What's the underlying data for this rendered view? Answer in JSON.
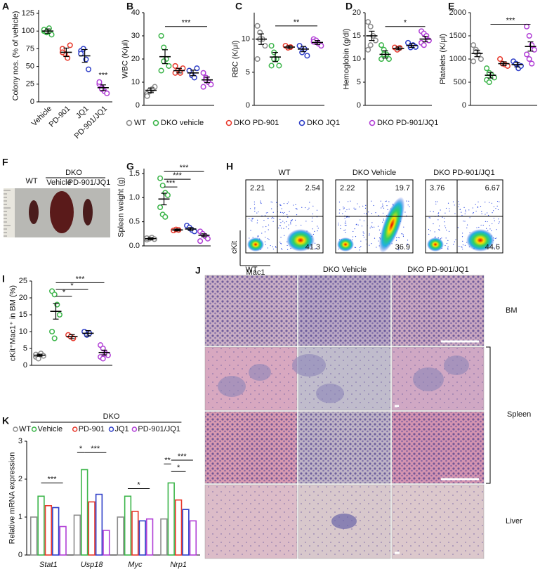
{
  "chart_data": [
    {
      "label": "A",
      "type": "dot",
      "y_label": "Colony nos. (% of vehicle)",
      "categories": [
        "Vehicle",
        "PD-901",
        "JQ1",
        "PD-901/JQ1"
      ],
      "groups": [
        {
          "color": "#3cb54a",
          "points": [
            100,
            98,
            104,
            95,
            102,
            99
          ],
          "mean": 100,
          "sem": 3
        },
        {
          "color": "#e8392c",
          "points": [
            75,
            68,
            62,
            80,
            70
          ],
          "mean": 70,
          "sem": 6
        },
        {
          "color": "#2f3fc8",
          "points": [
            72,
            75,
            60,
            46,
            68
          ],
          "mean": 65,
          "sem": 9
        },
        {
          "color": "#b13fd6",
          "points": [
            25,
            20,
            15,
            12,
            28,
            18
          ],
          "mean": 20,
          "sem": 4
        }
      ],
      "ylim": [
        0,
        130
      ],
      "yticks": [
        0,
        25,
        50,
        75,
        100,
        125
      ],
      "annotations": [
        {
          "text": "***",
          "from": 3,
          "to": 3,
          "y": 32
        }
      ]
    },
    {
      "label": "B",
      "type": "dot",
      "y_label": "WBC (K/μl)",
      "categories": [
        null,
        null,
        null,
        null,
        null
      ],
      "groups": [
        {
          "color": "#8c8c8c",
          "points": [
            5,
            6,
            7,
            8,
            4,
            6.5,
            7
          ],
          "mean": 6.5,
          "sem": 1
        },
        {
          "color": "#3cb54a",
          "points": [
            30,
            25,
            20,
            17,
            15,
            19
          ],
          "mean": 21,
          "sem": 3
        },
        {
          "color": "#e8392c",
          "points": [
            17,
            15,
            14,
            16,
            14
          ],
          "mean": 15,
          "sem": 1
        },
        {
          "color": "#2f3fc8",
          "points": [
            15,
            13,
            12,
            16
          ],
          "mean": 14,
          "sem": 1.2
        },
        {
          "color": "#b13fd6",
          "points": [
            14,
            12,
            10,
            9,
            8,
            11
          ],
          "mean": 11,
          "sem": 1.2
        }
      ],
      "ylim": [
        0,
        40
      ],
      "yticks": [
        0,
        10,
        20,
        30,
        40
      ],
      "annotations": [
        {
          "text": "***",
          "from": 1,
          "to": 4,
          "y": 34
        }
      ]
    },
    {
      "label": "C",
      "type": "dot",
      "y_label": "RBC (K/μl)",
      "categories": [
        null,
        null,
        null,
        null,
        null
      ],
      "groups": [
        {
          "color": "#8c8c8c",
          "points": [
            12,
            11,
            10,
            9,
            7,
            10
          ],
          "mean": 10,
          "sem": 0.8
        },
        {
          "color": "#3cb54a",
          "points": [
            9,
            8,
            7,
            6,
            6,
            7
          ],
          "mean": 7.3,
          "sem": 0.7
        },
        {
          "color": "#e8392c",
          "points": [
            9,
            8.7,
            8.8
          ],
          "mean": 8.8,
          "sem": 0.2
        },
        {
          "color": "#2f3fc8",
          "points": [
            9,
            8,
            8.5,
            7.5
          ],
          "mean": 8.5,
          "sem": 0.4
        },
        {
          "color": "#b13fd6",
          "points": [
            10,
            9.8,
            9.3,
            9,
            9.6
          ],
          "mean": 9.5,
          "sem": 0.3
        }
      ],
      "ylim": [
        0,
        14
      ],
      "yticks": [
        0,
        5,
        10
      ],
      "annotations": [
        {
          "text": "**",
          "from": 1,
          "to": 4,
          "y": 12
        }
      ]
    },
    {
      "label": "D",
      "type": "dot",
      "y_label": "Hemoglobin (g/dl)",
      "categories": [
        null,
        null,
        null,
        null,
        null
      ],
      "groups": [
        {
          "color": "#8c8c8c",
          "points": [
            18,
            17,
            15,
            14,
            12,
            13
          ],
          "mean": 15,
          "sem": 1
        },
        {
          "color": "#3cb54a",
          "points": [
            13,
            12,
            11,
            10,
            10,
            11
          ],
          "mean": 11,
          "sem": 0.8
        },
        {
          "color": "#e8392c",
          "points": [
            12.5,
            12,
            12.4
          ],
          "mean": 12.3,
          "sem": 0.3
        },
        {
          "color": "#2f3fc8",
          "points": [
            13.5,
            12.5,
            13,
            12.6
          ],
          "mean": 12.9,
          "sem": 0.4
        },
        {
          "color": "#b13fd6",
          "points": [
            16,
            15.5,
            15,
            14,
            13.5,
            13
          ],
          "mean": 14.3,
          "sem": 0.6
        }
      ],
      "ylim": [
        0,
        20
      ],
      "yticks": [
        0,
        5,
        10,
        15,
        20
      ],
      "annotations": [
        {
          "text": "*",
          "from": 1,
          "to": 4,
          "y": 17
        }
      ]
    },
    {
      "label": "E",
      "type": "dot",
      "y_label": "Platelets (K/μl)",
      "categories": [
        null,
        null,
        null,
        null,
        null
      ],
      "groups": [
        {
          "color": "#8c8c8c",
          "points": [
            1300,
            1200,
            1100,
            1000,
            950,
            1150
          ],
          "mean": 1120,
          "sem": 70
        },
        {
          "color": "#3cb54a",
          "points": [
            800,
            700,
            650,
            600,
            550,
            500
          ],
          "mean": 650,
          "sem": 60
        },
        {
          "color": "#e8392c",
          "points": [
            1000,
            900,
            880,
            850
          ],
          "mean": 900,
          "sem": 40
        },
        {
          "color": "#2f3fc8",
          "points": [
            950,
            900,
            800,
            850
          ],
          "mean": 880,
          "sem": 50
        },
        {
          "color": "#b13fd6",
          "points": [
            1700,
            1500,
            1300,
            1200,
            1100,
            1000,
            900
          ],
          "mean": 1270,
          "sem": 100
        }
      ],
      "ylim": [
        0,
        2000
      ],
      "yticks": [
        0,
        500,
        1000,
        1500,
        2000
      ],
      "annotations": [
        {
          "text": "***",
          "from": 1,
          "to": 4,
          "y": 1750
        }
      ]
    },
    {
      "label": "G",
      "type": "dot",
      "y_label": "Spleen weight (g)",
      "categories": [
        null,
        null,
        null,
        null,
        null
      ],
      "groups": [
        {
          "color": "#8c8c8c",
          "points": [
            0.13,
            0.15,
            0.17,
            0.14,
            0.16
          ],
          "mean": 0.15,
          "sem": 0.02
        },
        {
          "color": "#3cb54a",
          "points": [
            1.4,
            1.25,
            1.1,
            1.05,
            0.8,
            0.65,
            0.6
          ],
          "mean": 0.97,
          "sem": 0.12
        },
        {
          "color": "#e8392c",
          "points": [
            0.32,
            0.34,
            0.33
          ],
          "mean": 0.33,
          "sem": 0.02
        },
        {
          "color": "#2f3fc8",
          "points": [
            0.42,
            0.38,
            0.33,
            0.3
          ],
          "mean": 0.35,
          "sem": 0.03
        },
        {
          "color": "#b13fd6",
          "points": [
            0.3,
            0.25,
            0.2,
            0.15,
            0.1
          ],
          "mean": 0.22,
          "sem": 0.03
        }
      ],
      "ylim": [
        0,
        1.6
      ],
      "yticks": [
        {
          "value": 0,
          "label": "0.0"
        },
        0.5,
        {
          "value": 1,
          "label": "1.0"
        },
        1.5
      ],
      "annotations": [
        {
          "text": "***",
          "from": 1,
          "to": 2,
          "y": 1.22
        },
        {
          "text": "***",
          "from": 1,
          "to": 3,
          "y": 1.38
        },
        {
          "text": "***",
          "from": 1,
          "to": 4,
          "y": 1.54
        }
      ]
    },
    {
      "label": "I",
      "type": "dot",
      "y_label": "cKit⁺Mac1⁺ in BM (%)",
      "categories": [
        null,
        null,
        null,
        null,
        null
      ],
      "groups": [
        {
          "color": "#8c8c8c",
          "points": [
            2.5,
            3,
            3.5,
            2.8,
            3.2,
            2
          ],
          "mean": 3,
          "sem": 0.3
        },
        {
          "color": "#3cb54a",
          "points": [
            22,
            21,
            18,
            15,
            10,
            8
          ],
          "mean": 16,
          "sem": 2.3
        },
        {
          "color": "#e8392c",
          "points": [
            9,
            8.5,
            8
          ],
          "mean": 8.5,
          "sem": 0.6
        },
        {
          "color": "#2f3fc8",
          "points": [
            10,
            9,
            9.5
          ],
          "mean": 9.5,
          "sem": 0.8
        },
        {
          "color": "#b13fd6",
          "points": [
            6,
            5,
            3.5,
            3,
            2.5,
            2
          ],
          "mean": 3.8,
          "sem": 0.7
        }
      ],
      "ylim": [
        0,
        25
      ],
      "yticks": [
        0,
        5,
        10,
        15,
        20,
        25
      ],
      "annotations": [
        {
          "text": "*",
          "from": 1,
          "to": 2,
          "y": 20.5
        },
        {
          "text": "*",
          "from": 1,
          "to": 3,
          "y": 22.5
        },
        {
          "text": "***",
          "from": 1,
          "to": 4,
          "y": 24.5
        }
      ]
    },
    {
      "label": "K",
      "type": "bar",
      "y_label": "Relative mRNA expression",
      "categories": [
        "Stat1",
        "Usp18",
        "Myc",
        "Nrp1"
      ],
      "legend_group": "DKO",
      "series": [
        {
          "name": "WT",
          "color": "#8c8c8c",
          "values": [
            1,
            1.05,
            1,
            0.95
          ]
        },
        {
          "name": "Vehicle",
          "color": "#3cb54a",
          "values": [
            1.55,
            2.25,
            1.55,
            1.9
          ]
        },
        {
          "name": "PD-901",
          "color": "#e8392c",
          "values": [
            1.3,
            1.4,
            1.15,
            1.45
          ]
        },
        {
          "name": "JQ1",
          "color": "#2f3fc8",
          "values": [
            1.25,
            1.6,
            0.9,
            1.2
          ]
        },
        {
          "name": "PD-901/JQ1",
          "color": "#b13fd6",
          "values": [
            0.75,
            0.65,
            0.95,
            0.9
          ]
        }
      ],
      "ylim": [
        0,
        3
      ],
      "yticks": [
        0,
        1,
        2,
        3
      ],
      "annotations": [
        {
          "text": "***",
          "category": 0,
          "from": 1,
          "to": 4,
          "y": 1.9
        },
        {
          "text": "*",
          "category": 1,
          "from": 0,
          "to": 1,
          "y": 2.7
        },
        {
          "text": "***",
          "category": 1,
          "from": 1,
          "to": 4,
          "y": 2.7
        },
        {
          "text": "*",
          "category": 2,
          "from": 1,
          "to": 4,
          "y": 1.75
        },
        {
          "text": "**",
          "category": 3,
          "from": 0,
          "to": 1,
          "y": 2.4
        },
        {
          "text": "***",
          "category": 3,
          "from": 1,
          "to": 4,
          "y": 2.5
        },
        {
          "text": "*",
          "category": 3,
          "from": 1,
          "to": 3,
          "y": 2.2
        }
      ]
    }
  ],
  "legend": {
    "items": [
      {
        "name": "WT",
        "color": "#8c8c8c"
      },
      {
        "name": "DKO vehicle",
        "color": "#3cb54a"
      },
      {
        "name": "DKO PD-901",
        "color": "#e8392c"
      },
      {
        "name": "DKO JQ1",
        "color": "#2f3fc8"
      },
      {
        "name": "DKO PD-901/JQ1",
        "color": "#b13fd6"
      }
    ]
  },
  "photo": {
    "label": "F",
    "wt": "WT",
    "dko": "DKO",
    "conditions": [
      "Vehicle",
      "PD-901/JQ1"
    ]
  },
  "flow": {
    "label": "H",
    "y_axis": "cKit",
    "x_axis": "Mac1",
    "plots": [
      {
        "title": "WT",
        "upper_left": 2.21,
        "upper_right": 2.54,
        "lower_right": 41.3
      },
      {
        "title": "DKO Vehicle",
        "upper_left": 2.22,
        "upper_right": 19.7,
        "lower_right": 36.9
      },
      {
        "title": "DKO PD-901/JQ1",
        "upper_left": 3.76,
        "upper_right": 6.67,
        "lower_right": 44.6
      }
    ]
  },
  "histology": {
    "label": "J",
    "columns": [
      "WT",
      "DKO Vehicle",
      "DKO PD-901/JQ1"
    ],
    "rows": [
      "BM",
      "Spleen",
      "Liver"
    ]
  }
}
